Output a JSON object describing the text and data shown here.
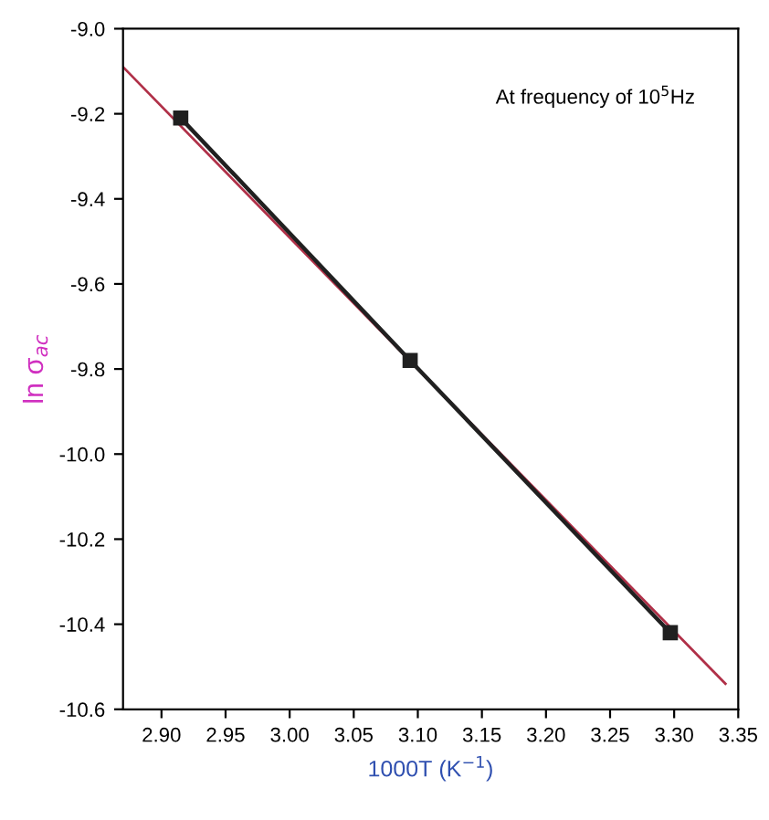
{
  "chart_data": {
    "type": "line",
    "xlabel": "1000T (K$^{−1}$)",
    "ylabel": "ln σ$_{ac}$",
    "annotations": [
      "At frequency of 10$^{5}$Hz"
    ],
    "series": [
      {
        "color": "#b03048",
        "x": [
          2.87,
          3.34
        ],
        "values": [
          -9.09,
          -10.54
        ],
        "marker": "none"
      },
      {
        "color": "#202020",
        "x": [
          2.915,
          3.094,
          3.297
        ],
        "values": [
          -9.21,
          -9.78,
          -10.42
        ],
        "marker": "square"
      }
    ],
    "xlim": [
      2.87,
      3.35
    ],
    "xticks": [
      {
        "value": 2.9,
        "label": "2.90"
      },
      {
        "value": 2.95,
        "label": "2.95"
      },
      {
        "value": 3.0,
        "label": "3.00"
      },
      {
        "value": 3.05,
        "label": "3.05"
      },
      {
        "value": 3.1,
        "label": "3.10"
      },
      {
        "value": 3.15,
        "label": "3.15"
      },
      {
        "value": 3.2,
        "label": "3.20"
      },
      {
        "value": 3.25,
        "label": "3.25"
      },
      {
        "value": 3.3,
        "label": "3.30"
      },
      {
        "value": 3.35,
        "label": "3.35"
      }
    ],
    "ylim": [
      -10.6,
      -9.0
    ],
    "yticks": [
      {
        "value": -9.0,
        "label": "-9.0"
      },
      {
        "value": -9.2,
        "label": "-9.2"
      },
      {
        "value": -9.4,
        "label": "-9.4"
      },
      {
        "value": -9.6,
        "label": "-9.6"
      },
      {
        "value": -9.8,
        "label": "-9.8"
      },
      {
        "value": -10.0,
        "label": "-10.0"
      },
      {
        "value": -10.2,
        "label": "-10.2"
      },
      {
        "value": -10.4,
        "label": "-10.4"
      },
      {
        "value": -10.6,
        "label": "-10.6"
      }
    ],
    "grid": false,
    "legend": false
  }
}
